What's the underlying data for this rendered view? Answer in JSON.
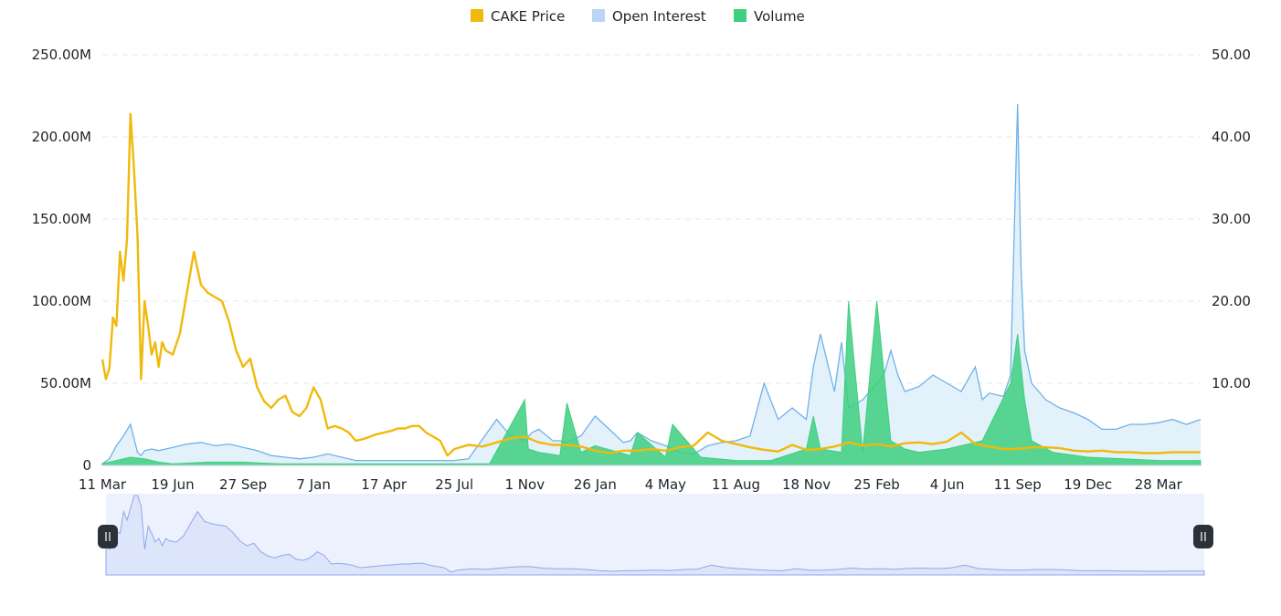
{
  "chart_data": {
    "type": "line",
    "title": "",
    "legend": {
      "position": "top-center",
      "items": [
        {
          "name": "CAKE Price",
          "color": "#f0b90b"
        },
        {
          "name": "Open Interest",
          "color": "#bcd4f6"
        },
        {
          "name": "Volume",
          "color": "#3ecf7f"
        }
      ]
    },
    "colors": {
      "price_line": "#f0b90b",
      "oi_line": "#6fb1e8",
      "oi_fill": "#e3f1fb",
      "volume": "#3ecf7f",
      "grid": "#e6e8ea",
      "zoom_bg": "#edf1fd",
      "zoom_area": "#dde5fb",
      "zoom_line": "#8fa6ea",
      "zoom_handle": "#2b3139"
    },
    "grid": true,
    "x_ticks": [
      "11 Mar",
      "19 Jun",
      "27 Sep",
      "7 Jan",
      "17 Apr",
      "25 Jul",
      "1 Nov",
      "26 Jan",
      "4 May",
      "11 Aug",
      "18 Nov",
      "25 Feb",
      "4 Jun",
      "11 Sep",
      "19 Dec",
      "28 Mar"
    ],
    "y_left": {
      "ticks": [
        "0",
        "50.00M",
        "100.00M",
        "150.00M",
        "200.00M",
        "250.00M"
      ],
      "range": [
        0,
        250
      ]
    },
    "y_right": {
      "ticks": [
        "10.00",
        "20.00",
        "30.00",
        "40.00",
        "50.00"
      ],
      "range": [
        0,
        50
      ]
    },
    "x_range": [
      0,
      15.6
    ],
    "series": [
      {
        "name": "CAKE Price",
        "axis": "right",
        "x": [
          0,
          0.05,
          0.1,
          0.15,
          0.2,
          0.25,
          0.3,
          0.35,
          0.4,
          0.45,
          0.5,
          0.55,
          0.6,
          0.65,
          0.7,
          0.75,
          0.8,
          0.85,
          0.9,
          1.0,
          1.1,
          1.2,
          1.3,
          1.4,
          1.5,
          1.6,
          1.7,
          1.8,
          1.9,
          2.0,
          2.1,
          2.2,
          2.3,
          2.4,
          2.5,
          2.6,
          2.7,
          2.8,
          2.9,
          3.0,
          3.1,
          3.2,
          3.3,
          3.4,
          3.5,
          3.6,
          3.7,
          3.8,
          3.9,
          4.0,
          4.1,
          4.2,
          4.3,
          4.4,
          4.5,
          4.6,
          4.7,
          4.8,
          4.9,
          5.0,
          5.2,
          5.4,
          5.6,
          5.8,
          6.0,
          6.2,
          6.4,
          6.6,
          6.8,
          7.0,
          7.2,
          7.4,
          7.6,
          7.8,
          8.0,
          8.2,
          8.4,
          8.6,
          8.8,
          9.0,
          9.2,
          9.4,
          9.6,
          9.8,
          10.0,
          10.2,
          10.4,
          10.6,
          10.8,
          11.0,
          11.2,
          11.4,
          11.6,
          11.8,
          12.0,
          12.2,
          12.4,
          12.6,
          12.8,
          13.0,
          13.2,
          13.4,
          13.6,
          13.8,
          14.0,
          14.2,
          14.4,
          14.6,
          14.8,
          15.0,
          15.2,
          15.4,
          15.6
        ],
        "values": [
          12.9,
          10.5,
          11.8,
          18.0,
          17.0,
          26.0,
          22.5,
          27.5,
          42.8,
          36.0,
          28.0,
          10.5,
          20.0,
          17.0,
          13.5,
          15.0,
          12.0,
          15.0,
          14.0,
          13.5,
          16.0,
          21.0,
          26.0,
          22.0,
          21.0,
          20.5,
          20.0,
          17.5,
          14.0,
          12.0,
          13.0,
          9.5,
          7.8,
          7.0,
          8.0,
          8.5,
          6.5,
          6.0,
          7.0,
          9.5,
          8.0,
          4.5,
          4.8,
          4.5,
          4.0,
          3.0,
          3.2,
          3.5,
          3.8,
          4.0,
          4.2,
          4.5,
          4.5,
          4.8,
          4.8,
          4.0,
          3.5,
          3.0,
          1.2,
          2.0,
          2.5,
          2.3,
          2.8,
          3.3,
          3.5,
          2.8,
          2.5,
          2.5,
          2.3,
          1.8,
          1.5,
          1.8,
          1.8,
          2.0,
          1.8,
          2.2,
          2.4,
          4.0,
          3.0,
          2.6,
          2.2,
          1.9,
          1.7,
          2.5,
          1.9,
          2.0,
          2.3,
          2.8,
          2.4,
          2.6,
          2.3,
          2.7,
          2.8,
          2.6,
          2.9,
          4.0,
          2.6,
          2.3,
          2.0,
          2.0,
          2.2,
          2.2,
          2.1,
          1.8,
          1.7,
          1.8,
          1.6,
          1.6,
          1.5,
          1.5,
          1.6,
          1.6,
          1.6
        ]
      },
      {
        "name": "Open Interest",
        "axis": "left",
        "x": [
          0,
          0.1,
          0.2,
          0.3,
          0.4,
          0.5,
          0.55,
          0.6,
          0.7,
          0.8,
          1.0,
          1.2,
          1.4,
          1.6,
          1.8,
          2.0,
          2.2,
          2.4,
          2.6,
          2.8,
          3.0,
          3.2,
          3.4,
          3.6,
          3.8,
          4.0,
          4.2,
          4.4,
          4.6,
          4.8,
          5.0,
          5.2,
          5.4,
          5.6,
          5.8,
          6.0,
          6.1,
          6.2,
          6.4,
          6.5,
          6.6,
          6.8,
          7.0,
          7.2,
          7.4,
          7.5,
          7.6,
          7.8,
          8.0,
          8.1,
          8.2,
          8.4,
          8.6,
          8.8,
          9.0,
          9.2,
          9.4,
          9.6,
          9.8,
          10.0,
          10.1,
          10.2,
          10.4,
          10.5,
          10.6,
          10.8,
          11.0,
          11.1,
          11.2,
          11.3,
          11.4,
          11.6,
          11.8,
          12.0,
          12.2,
          12.4,
          12.5,
          12.6,
          12.8,
          12.9,
          13.0,
          13.05,
          13.1,
          13.2,
          13.4,
          13.6,
          13.8,
          14.0,
          14.2,
          14.4,
          14.6,
          14.8,
          15.0,
          15.2,
          15.4,
          15.6
        ],
        "values": [
          1,
          4,
          12,
          18,
          25,
          8,
          6,
          9,
          10,
          9,
          11,
          13,
          14,
          12,
          13,
          11,
          9,
          6,
          5,
          4,
          5,
          7,
          5,
          3,
          3,
          3,
          3,
          3,
          3,
          3,
          3,
          4,
          16,
          28,
          18,
          15,
          20,
          22,
          15,
          15,
          14,
          18,
          30,
          22,
          14,
          15,
          20,
          15,
          12,
          10,
          8,
          7,
          12,
          14,
          15,
          18,
          50,
          28,
          35,
          28,
          60,
          80,
          45,
          75,
          35,
          40,
          50,
          55,
          70,
          55,
          45,
          48,
          55,
          50,
          45,
          60,
          40,
          44,
          42,
          55,
          220,
          120,
          70,
          50,
          40,
          35,
          32,
          28,
          22,
          22,
          25,
          25,
          26,
          28,
          25,
          28
        ]
      },
      {
        "name": "Volume",
        "axis": "left",
        "x": [
          0,
          0.2,
          0.4,
          0.6,
          0.8,
          1.0,
          1.5,
          2.0,
          2.5,
          3.0,
          3.5,
          4.0,
          4.5,
          5.0,
          5.5,
          6.0,
          6.05,
          6.2,
          6.5,
          6.6,
          6.8,
          7.0,
          7.5,
          7.6,
          8.0,
          8.1,
          8.5,
          9.0,
          9.5,
          10.0,
          10.1,
          10.2,
          10.5,
          10.6,
          10.8,
          11.0,
          11.2,
          11.4,
          11.6,
          12.0,
          12.5,
          12.9,
          13.0,
          13.05,
          13.1,
          13.2,
          13.5,
          14.0,
          14.5,
          15.0,
          15.6
        ],
        "values": [
          1,
          3,
          5,
          4,
          2,
          1,
          2,
          2,
          1,
          1,
          1,
          1,
          1,
          1,
          1,
          40,
          10,
          8,
          6,
          38,
          8,
          12,
          6,
          20,
          5,
          25,
          5,
          3,
          3,
          10,
          30,
          10,
          8,
          100,
          8,
          100,
          15,
          10,
          8,
          10,
          15,
          50,
          80,
          60,
          40,
          15,
          8,
          5,
          4,
          3,
          3
        ]
      }
    ]
  }
}
